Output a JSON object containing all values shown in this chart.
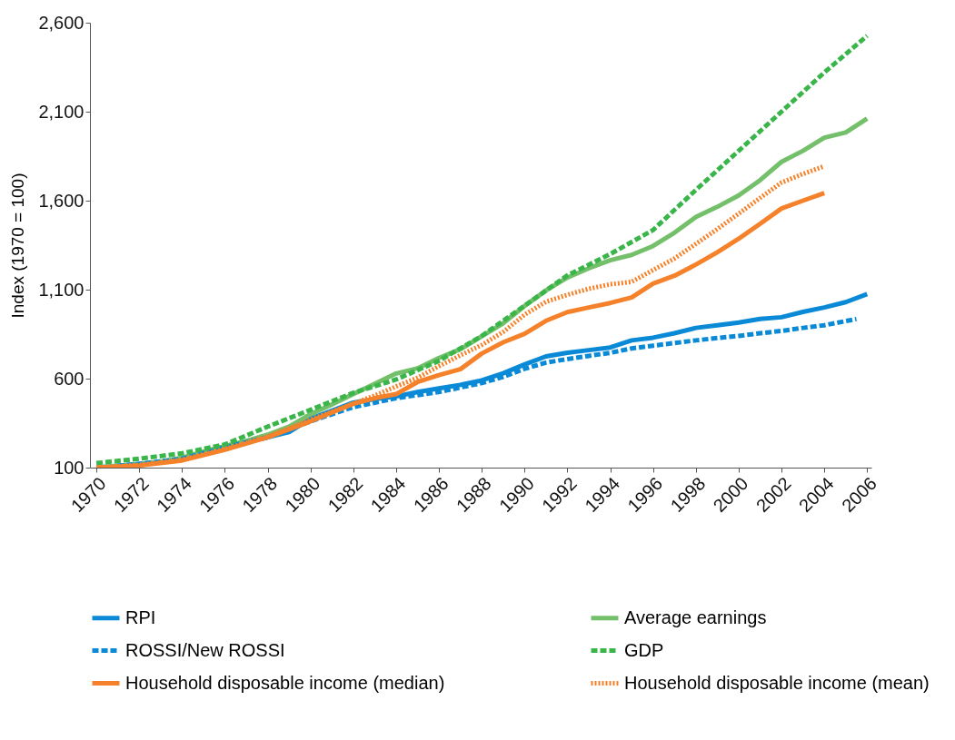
{
  "chart_data": {
    "type": "line",
    "ylabel": "Index (1970 = 100)",
    "xlim": [
      1969.7,
      2006.2
    ],
    "xticks": [
      1970,
      1972,
      1974,
      1976,
      1978,
      1980,
      1982,
      1984,
      1986,
      1988,
      1990,
      1992,
      1994,
      1996,
      1998,
      2000,
      2002,
      2004,
      2006
    ],
    "ylim": [
      100,
      2600
    ],
    "yticks": [
      100,
      600,
      {
        "value": 1100,
        "label": "1,100"
      },
      {
        "value": 1600,
        "label": "1,600"
      },
      {
        "value": 2100,
        "label": "2,100"
      },
      {
        "value": 2600,
        "label": "2,600"
      }
    ],
    "grid": false,
    "legend": "bottom",
    "series": [
      {
        "name": "RPI",
        "color": "#0a8ad6",
        "line_style": "solid",
        "x": [
          1970,
          1971,
          1972,
          1973,
          1974,
          1975,
          1976,
          1977,
          1978,
          1979,
          1980,
          1981,
          1982,
          1983,
          1984,
          1985,
          1986,
          1987,
          1988,
          1989,
          1990,
          1991,
          1992,
          1993,
          1994,
          1995,
          1996,
          1997,
          1998,
          1999,
          2000,
          2001,
          2002,
          2003,
          2004,
          2005,
          2006
        ],
        "values": [
          100,
          110,
          120,
          132,
          150,
          185,
          220,
          245,
          270,
          300,
          375,
          420,
          465,
          485,
          500,
          525,
          545,
          565,
          590,
          630,
          680,
          725,
          745,
          760,
          775,
          815,
          830,
          855,
          885,
          900,
          915,
          935,
          945,
          975,
          1000,
          1030,
          1075
        ]
      },
      {
        "name": "Average earnings",
        "color": "#74c06a",
        "line_style": "solid",
        "x": [
          1970,
          1971,
          1972,
          1973,
          1974,
          1975,
          1976,
          1977,
          1978,
          1979,
          1980,
          1981,
          1982,
          1983,
          1984,
          1985,
          1986,
          1987,
          1988,
          1989,
          1990,
          1991,
          1992,
          1993,
          1994,
          1995,
          1996,
          1997,
          1998,
          1999,
          2000,
          2001,
          2002,
          2003,
          2004,
          2005,
          2006
        ],
        "values": [
          100,
          110,
          118,
          132,
          155,
          190,
          220,
          250,
          285,
          330,
          400,
          455,
          513,
          571,
          629,
          658,
          716,
          765,
          838,
          911,
          1008,
          1095,
          1168,
          1220,
          1265,
          1295,
          1345,
          1420,
          1508,
          1565,
          1629,
          1715,
          1818,
          1880,
          1954,
          1983,
          2061
        ]
      },
      {
        "name": "ROSSI/New ROSSI",
        "color": "#0a8ad6",
        "line_style": "dashed",
        "x": [
          1971,
          1972,
          1974,
          1976,
          1978,
          1980,
          1982,
          1984,
          1986,
          1988,
          1989,
          1990,
          1991,
          1992,
          1993,
          1994,
          1995,
          1996,
          1997,
          1998,
          1999,
          2000,
          2001,
          2002,
          2003,
          2004,
          2005.5
        ],
        "values": [
          110,
          120,
          150,
          215,
          270,
          360,
          440,
          490,
          525,
          575,
          610,
          655,
          690,
          710,
          728,
          745,
          770,
          785,
          800,
          815,
          828,
          840,
          855,
          868,
          885,
          900,
          935
        ]
      },
      {
        "name": "GDP",
        "color": "#3ab54a",
        "line_style": "dashed",
        "x": [
          1970,
          1972,
          1974,
          1976,
          1978,
          1980,
          1982,
          1984,
          1986,
          1988,
          1990,
          1992,
          1994,
          1996,
          1998,
          2000,
          2002,
          2004,
          2006
        ],
        "values": [
          125,
          150,
          180,
          230,
          330,
          425,
          520,
          595,
          700,
          840,
          1010,
          1180,
          1300,
          1435,
          1660,
          1880,
          2100,
          2320,
          2527
        ]
      },
      {
        "name": "Household disposable income (median)",
        "color": "#f5822a",
        "line_style": "solid",
        "x": [
          1970,
          1972,
          1974,
          1976,
          1978,
          1980,
          1982,
          1983,
          1984,
          1985,
          1986,
          1987,
          1988,
          1989,
          1990,
          1991,
          1992,
          1993,
          1994,
          1995,
          1996,
          1997,
          1998,
          1999,
          2000,
          2001,
          2002,
          2003,
          2004
        ],
        "values": [
          100,
          112,
          140,
          200,
          270,
          360,
          459,
          490,
          513,
          581,
          620,
          653,
          741,
          804,
          852,
          925,
          974,
          1000,
          1025,
          1056,
          1134,
          1178,
          1241,
          1310,
          1386,
          1470,
          1556,
          1600,
          1643
        ]
      },
      {
        "name": "Household disposable income (mean)",
        "color": "#f5822a",
        "line_style": "dotted",
        "x": [
          1970,
          1972,
          1974,
          1976,
          1978,
          1980,
          1982,
          1983,
          1984,
          1985,
          1986,
          1987,
          1988,
          1989,
          1990,
          1991,
          1992,
          1993,
          1994,
          1995,
          1996,
          1997,
          1998,
          1999,
          2000,
          2001,
          2002,
          2003,
          2004
        ],
        "values": [
          100,
          115,
          145,
          205,
          275,
          370,
          459,
          505,
          556,
          605,
          670,
          731,
          789,
          862,
          959,
          1032,
          1071,
          1105,
          1130,
          1144,
          1210,
          1275,
          1357,
          1440,
          1527,
          1615,
          1702,
          1750,
          1794
        ]
      }
    ]
  }
}
